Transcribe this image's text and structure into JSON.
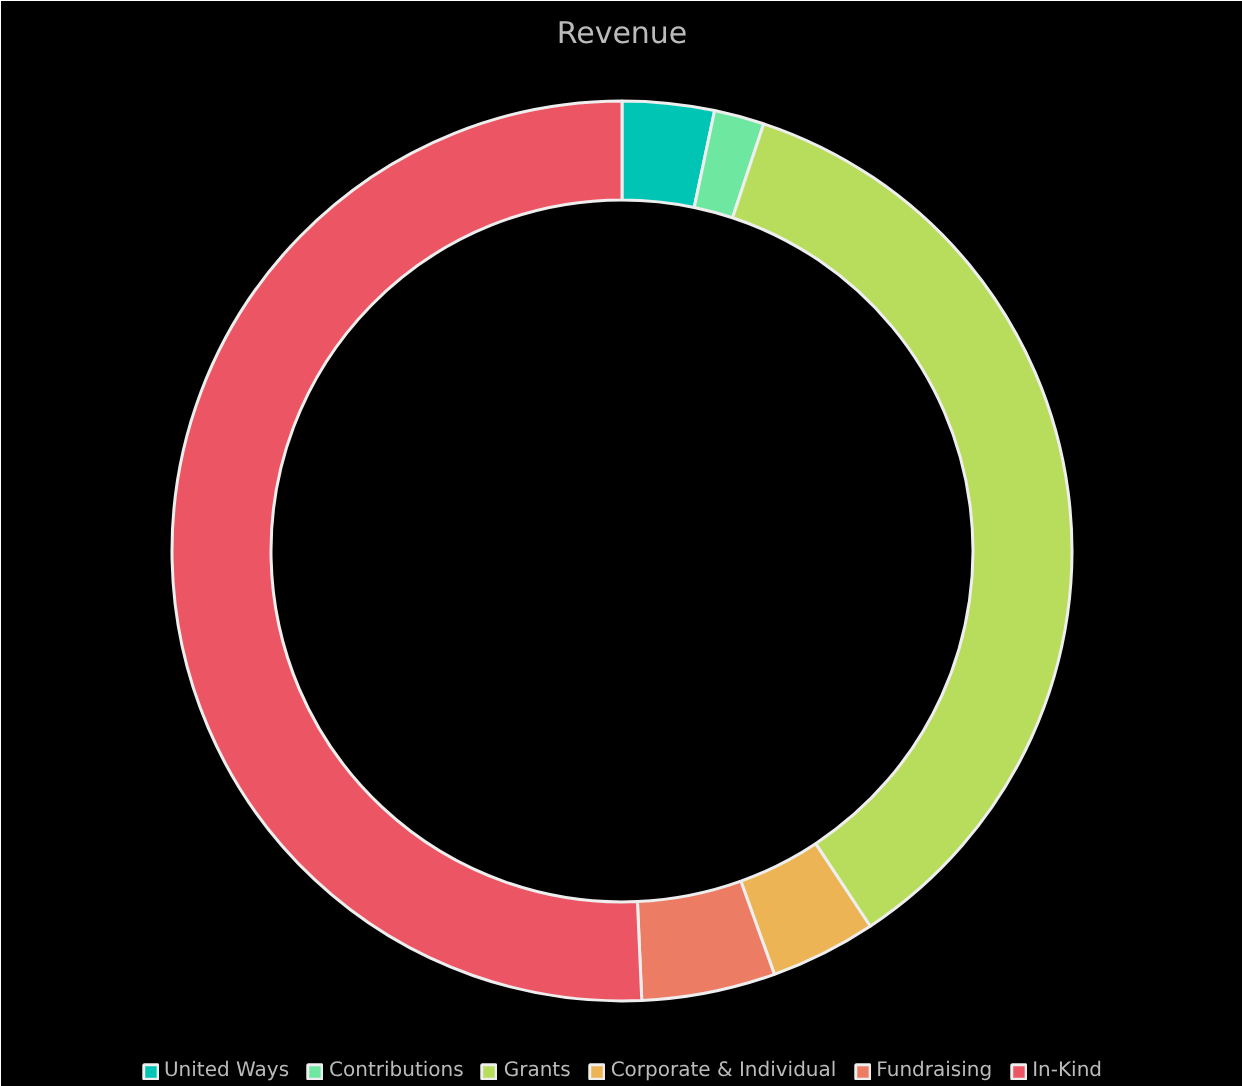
{
  "chart_data": {
    "type": "donut",
    "title": "Revenue",
    "categories": [
      "United Ways",
      "Contributions",
      "Grants",
      "Corporate & Individual",
      "Fundraising",
      "In-Kind"
    ],
    "values": [
      3.3,
      1.8,
      35.6,
      3.8,
      4.8,
      50.7
    ],
    "colors": [
      "#00c4b4",
      "#6ee8a0",
      "#b8dc5c",
      "#ecb454",
      "#ec7c64",
      "#ec5664"
    ],
    "legend": "bottom"
  }
}
